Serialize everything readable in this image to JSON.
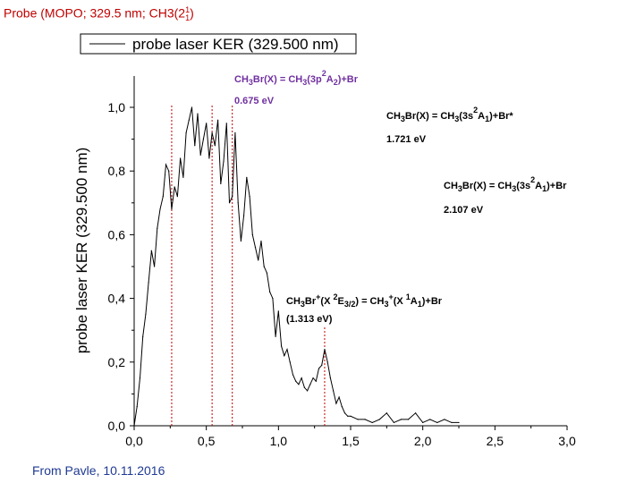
{
  "slide": {
    "title": "Probe (MOPO; 329.5 nm; CH3(2",
    "title_sup": "1",
    "title_sub": "1",
    "title_end": ")",
    "footer": "From Pavle, 10.11.2016"
  },
  "chart_data": {
    "type": "line",
    "ylabel": "probe laser KER (329.500 nm)",
    "xlabel": "",
    "xlim": [
      0,
      3.0
    ],
    "ylim": [
      0,
      1.1
    ],
    "x_ticks": [
      "0,0",
      "0,5",
      "1,0",
      "1,5",
      "2,0",
      "2,5",
      "3,0"
    ],
    "y_ticks": [
      "0,0",
      "0,2",
      "0,4",
      "0,6",
      "0,8",
      "1,0"
    ],
    "legend": {
      "label": "probe laser KER (329.500 nm)",
      "position": "top"
    },
    "series": [
      {
        "name": "probe laser KER (329.500 nm)",
        "color": "#000000",
        "x": [
          0.0,
          0.02,
          0.04,
          0.06,
          0.08,
          0.1,
          0.12,
          0.14,
          0.16,
          0.18,
          0.2,
          0.22,
          0.24,
          0.26,
          0.28,
          0.3,
          0.32,
          0.34,
          0.36,
          0.38,
          0.4,
          0.42,
          0.44,
          0.46,
          0.48,
          0.5,
          0.52,
          0.54,
          0.56,
          0.58,
          0.6,
          0.62,
          0.64,
          0.66,
          0.68,
          0.7,
          0.72,
          0.74,
          0.76,
          0.78,
          0.8,
          0.82,
          0.84,
          0.86,
          0.88,
          0.9,
          0.92,
          0.94,
          0.96,
          0.98,
          1.0,
          1.02,
          1.04,
          1.06,
          1.08,
          1.1,
          1.12,
          1.14,
          1.16,
          1.18,
          1.2,
          1.22,
          1.24,
          1.26,
          1.28,
          1.3,
          1.32,
          1.34,
          1.36,
          1.38,
          1.4,
          1.42,
          1.44,
          1.46,
          1.48,
          1.5,
          1.55,
          1.6,
          1.65,
          1.7,
          1.75,
          1.8,
          1.85,
          1.9,
          1.95,
          2.0,
          2.05,
          2.1,
          2.15,
          2.2,
          2.25
        ],
        "values": [
          0.0,
          0.06,
          0.15,
          0.28,
          0.35,
          0.45,
          0.55,
          0.5,
          0.62,
          0.68,
          0.72,
          0.82,
          0.8,
          0.68,
          0.75,
          0.72,
          0.84,
          0.78,
          0.92,
          0.96,
          1.0,
          0.88,
          0.98,
          0.85,
          0.9,
          0.95,
          0.84,
          0.92,
          0.88,
          0.96,
          0.76,
          0.83,
          0.95,
          0.7,
          0.72,
          0.92,
          0.7,
          0.58,
          0.66,
          0.78,
          0.72,
          0.6,
          0.56,
          0.52,
          0.58,
          0.5,
          0.48,
          0.42,
          0.4,
          0.28,
          0.36,
          0.25,
          0.22,
          0.24,
          0.2,
          0.16,
          0.14,
          0.13,
          0.15,
          0.12,
          0.11,
          0.13,
          0.15,
          0.14,
          0.18,
          0.19,
          0.24,
          0.2,
          0.15,
          0.11,
          0.07,
          0.09,
          0.06,
          0.04,
          0.03,
          0.03,
          0.02,
          0.02,
          0.01,
          0.02,
          0.04,
          0.01,
          0.02,
          0.02,
          0.04,
          0.01,
          0.02,
          0.01,
          0.02,
          0.01,
          0.01
        ]
      }
    ],
    "vlines": {
      "color": "#c00000",
      "x": [
        0.26,
        0.54,
        0.68,
        1.32
      ]
    },
    "annotations": [
      {
        "pre": "CH",
        "sub1": "3",
        "mid": "Br(X) = CH",
        "sub2": "3",
        "mid2": "(3p",
        "sup": "2",
        "sym": "A",
        "sub3": "2",
        "post": ")+Br",
        "energy": "0.675 eV",
        "color": "#7030a0"
      },
      {
        "pre": "CH",
        "sub1": "3",
        "mid": "Br(X) = CH",
        "sub2": "3",
        "mid2": "(3s",
        "sup": "2",
        "sym": "A",
        "sub3": "1",
        "post": ")+Br*",
        "energy": "1.721 eV",
        "color": "#000000"
      },
      {
        "pre": "CH",
        "sub1": "3",
        "mid": "Br(X) = CH",
        "sub2": "3",
        "mid2": "(3s",
        "sup": "2",
        "sym": "A",
        "sub3": "1",
        "post": ")+Br",
        "energy": "2.107 eV",
        "color": "#000000"
      },
      {
        "pre": "CH",
        "sub1": "3",
        "mid": "Br",
        "sup0": "+",
        "mid0": "(X ",
        "sup": "2",
        "sym": "E",
        "sub3": "3/2",
        "mid2": ") = CH",
        "sub2": "3",
        "sup2": "+",
        "mid3": "(X ",
        "sup3": "1",
        "sym2": "A",
        "sub4": "1",
        "post": ")+Br",
        "energy": "(1.313 eV)",
        "color": "#000000"
      }
    ]
  }
}
